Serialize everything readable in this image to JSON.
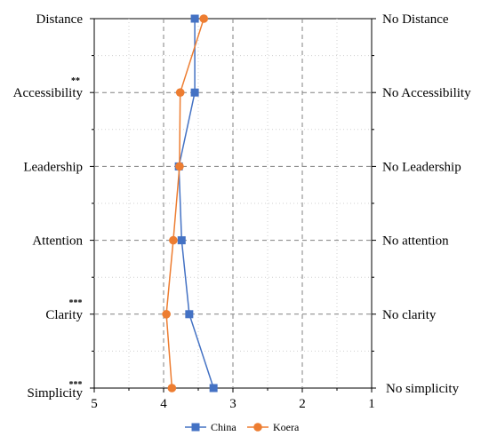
{
  "chart_data": {
    "type": "line",
    "orientation": "horizontal",
    "categories": [
      "Distance",
      "Accessibility",
      "Leadership",
      "Attention",
      "Clarity",
      "Simplicity"
    ],
    "right_labels": [
      "No Distance",
      "No Accessibility",
      "No Leadership",
      "No attention",
      "No clarity",
      "No simplicity"
    ],
    "significance": [
      "",
      "**",
      "",
      "",
      "***",
      "***"
    ],
    "series": [
      {
        "name": "China",
        "values": [
          3.55,
          3.55,
          3.78,
          3.74,
          3.63,
          3.28
        ],
        "color": "#4472c4",
        "marker": "square"
      },
      {
        "name": "Koera",
        "values": [
          3.42,
          3.76,
          3.77,
          3.86,
          3.96,
          3.88
        ],
        "color": "#ed7d31",
        "marker": "circle"
      }
    ],
    "xlim": [
      5,
      1
    ],
    "xticks": [
      "5",
      "4",
      "3",
      "2",
      "1"
    ],
    "x_reversed": true,
    "grid": true,
    "legend": "bottom"
  }
}
